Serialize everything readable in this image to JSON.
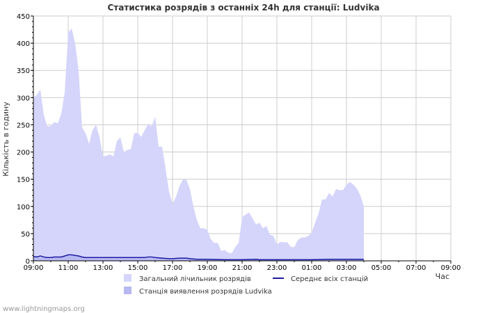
{
  "chart_data": {
    "type": "area",
    "title": "Статистика розрядів з останніх 24h для станції: Ludvika",
    "ylabel": "Кількість в годину",
    "xlabel": "Час",
    "ylim": [
      0,
      450
    ],
    "yticks": [
      0,
      50,
      100,
      150,
      200,
      250,
      300,
      350,
      400,
      450
    ],
    "xlim": [
      0,
      24
    ],
    "xticks": [
      {
        "x": 0,
        "label": "09:00"
      },
      {
        "x": 2,
        "label": "11:00"
      },
      {
        "x": 4,
        "label": "13:00"
      },
      {
        "x": 6,
        "label": "15:00"
      },
      {
        "x": 8,
        "label": "17:00"
      },
      {
        "x": 10,
        "label": "19:00"
      },
      {
        "x": 12,
        "label": "21:00"
      },
      {
        "x": 14,
        "label": "23:00"
      },
      {
        "x": 16,
        "label": "01:00"
      },
      {
        "x": 18,
        "label": "03:00"
      },
      {
        "x": 20,
        "label": "05:00"
      },
      {
        "x": 22,
        "label": "07:00"
      },
      {
        "x": 24,
        "label": "09:00"
      }
    ],
    "grid": true,
    "series": [
      {
        "name": "Загальний лічильник розрядів",
        "kind": "area",
        "color": "#d5d5fb",
        "points": [
          [
            0,
            300
          ],
          [
            0.2,
            305
          ],
          [
            0.4,
            315
          ],
          [
            0.6,
            268
          ],
          [
            0.8,
            247
          ],
          [
            1.0,
            248
          ],
          [
            1.2,
            255
          ],
          [
            1.4,
            253
          ],
          [
            1.6,
            270
          ],
          [
            1.8,
            310
          ],
          [
            2.0,
            420
          ],
          [
            2.2,
            427
          ],
          [
            2.4,
            400
          ],
          [
            2.6,
            350
          ],
          [
            2.8,
            245
          ],
          [
            3.0,
            235
          ],
          [
            3.2,
            215
          ],
          [
            3.4,
            240
          ],
          [
            3.6,
            250
          ],
          [
            3.8,
            228
          ],
          [
            4.0,
            192
          ],
          [
            4.2,
            193
          ],
          [
            4.4,
            196
          ],
          [
            4.6,
            192
          ],
          [
            4.8,
            220
          ],
          [
            5.0,
            227
          ],
          [
            5.2,
            200
          ],
          [
            5.4,
            204
          ],
          [
            5.6,
            205
          ],
          [
            5.8,
            235
          ],
          [
            6.0,
            235
          ],
          [
            6.2,
            228
          ],
          [
            6.4,
            240
          ],
          [
            6.6,
            252
          ],
          [
            6.8,
            247
          ],
          [
            7.0,
            265
          ],
          [
            7.2,
            210
          ],
          [
            7.4,
            210
          ],
          [
            7.6,
            170
          ],
          [
            7.8,
            127
          ],
          [
            8.0,
            105
          ],
          [
            8.2,
            118
          ],
          [
            8.4,
            137
          ],
          [
            8.6,
            150
          ],
          [
            8.8,
            149
          ],
          [
            9.0,
            132
          ],
          [
            9.2,
            100
          ],
          [
            9.4,
            75
          ],
          [
            9.6,
            60
          ],
          [
            9.8,
            60
          ],
          [
            10.0,
            57
          ],
          [
            10.2,
            40
          ],
          [
            10.4,
            33
          ],
          [
            10.6,
            33
          ],
          [
            10.8,
            18
          ],
          [
            11.0,
            20
          ],
          [
            11.2,
            15
          ],
          [
            11.4,
            14
          ],
          [
            11.6,
            25
          ],
          [
            11.8,
            33
          ],
          [
            12.0,
            80
          ],
          [
            12.2,
            85
          ],
          [
            12.4,
            89
          ],
          [
            12.6,
            78
          ],
          [
            12.8,
            67
          ],
          [
            13.0,
            70
          ],
          [
            13.2,
            60
          ],
          [
            13.4,
            64
          ],
          [
            13.6,
            48
          ],
          [
            13.8,
            46
          ],
          [
            14.0,
            30
          ],
          [
            14.2,
            35
          ],
          [
            14.4,
            34
          ],
          [
            14.6,
            34
          ],
          [
            14.8,
            26
          ],
          [
            15.0,
            25
          ],
          [
            15.2,
            38
          ],
          [
            15.4,
            43
          ],
          [
            15.6,
            43
          ],
          [
            15.8,
            46
          ],
          [
            16.0,
            52
          ],
          [
            16.2,
            70
          ],
          [
            16.4,
            88
          ],
          [
            16.6,
            113
          ],
          [
            16.8,
            113
          ],
          [
            17.0,
            125
          ],
          [
            17.2,
            118
          ],
          [
            17.4,
            132
          ],
          [
            17.6,
            130
          ],
          [
            17.8,
            130
          ],
          [
            18.0,
            140
          ],
          [
            18.2,
            145
          ],
          [
            18.4,
            140
          ],
          [
            18.6,
            133
          ],
          [
            18.8,
            120
          ],
          [
            19.0,
            100
          ]
        ]
      },
      {
        "name": "Станція виявлення розрядів Ludvika",
        "kind": "area",
        "color": "#b8b8f2",
        "points": [
          [
            0,
            8
          ],
          [
            0.4,
            6
          ],
          [
            0.8,
            5
          ],
          [
            1.2,
            6
          ],
          [
            1.6,
            7
          ],
          [
            2.0,
            10
          ],
          [
            2.4,
            10
          ],
          [
            2.8,
            7
          ],
          [
            3.2,
            5
          ],
          [
            4,
            5
          ],
          [
            6,
            5
          ],
          [
            7,
            5
          ],
          [
            8,
            4
          ],
          [
            9,
            4
          ],
          [
            10,
            3
          ],
          [
            11,
            2
          ],
          [
            12,
            2
          ],
          [
            13,
            2
          ],
          [
            14,
            2
          ],
          [
            15,
            2
          ],
          [
            16,
            2
          ],
          [
            17,
            2
          ],
          [
            18,
            2
          ],
          [
            19,
            2
          ]
        ]
      },
      {
        "name": "Середнє всіх станцій",
        "kind": "line",
        "color": "#1a1aa0",
        "points": [
          [
            0,
            8
          ],
          [
            0.2,
            7
          ],
          [
            0.4,
            9
          ],
          [
            0.6,
            7
          ],
          [
            0.8,
            6
          ],
          [
            1.0,
            6
          ],
          [
            1.2,
            7
          ],
          [
            1.4,
            7
          ],
          [
            1.6,
            7
          ],
          [
            1.8,
            9
          ],
          [
            2.0,
            11
          ],
          [
            2.2,
            11
          ],
          [
            2.4,
            10
          ],
          [
            2.6,
            9
          ],
          [
            2.8,
            7
          ],
          [
            3.0,
            6
          ],
          [
            4,
            6
          ],
          [
            5,
            6
          ],
          [
            6,
            6
          ],
          [
            6.4,
            6
          ],
          [
            6.6,
            7
          ],
          [
            6.8,
            7
          ],
          [
            7.0,
            6
          ],
          [
            7.4,
            5
          ],
          [
            7.8,
            4
          ],
          [
            8.0,
            4
          ],
          [
            8.4,
            5
          ],
          [
            8.8,
            5
          ],
          [
            9.0,
            4
          ],
          [
            9.4,
            3
          ],
          [
            10,
            3
          ],
          [
            11,
            2
          ],
          [
            12,
            2
          ],
          [
            12.8,
            3
          ],
          [
            13,
            2
          ],
          [
            14,
            2
          ],
          [
            15,
            2
          ],
          [
            16,
            2
          ],
          [
            17,
            3
          ],
          [
            18,
            3
          ],
          [
            18.6,
            3
          ],
          [
            19,
            3
          ]
        ]
      }
    ],
    "legend": {
      "placement": "bottom",
      "entries": [
        {
          "label": "Загальний лічильник розрядів",
          "color": "#d5d5fb",
          "kind": "area"
        },
        {
          "label": "Середнє всіх станцій",
          "color": "#1a1aa0",
          "kind": "line"
        },
        {
          "label": "Станція виявлення розрядів Ludvika",
          "color": "#b8b8f2",
          "kind": "area"
        }
      ]
    }
  },
  "footer": {
    "watermark": "www.lightningmaps.org"
  },
  "colors": {
    "grid": "#cccccc",
    "axis": "#000000",
    "text": "#333333",
    "footer": "#999999"
  }
}
